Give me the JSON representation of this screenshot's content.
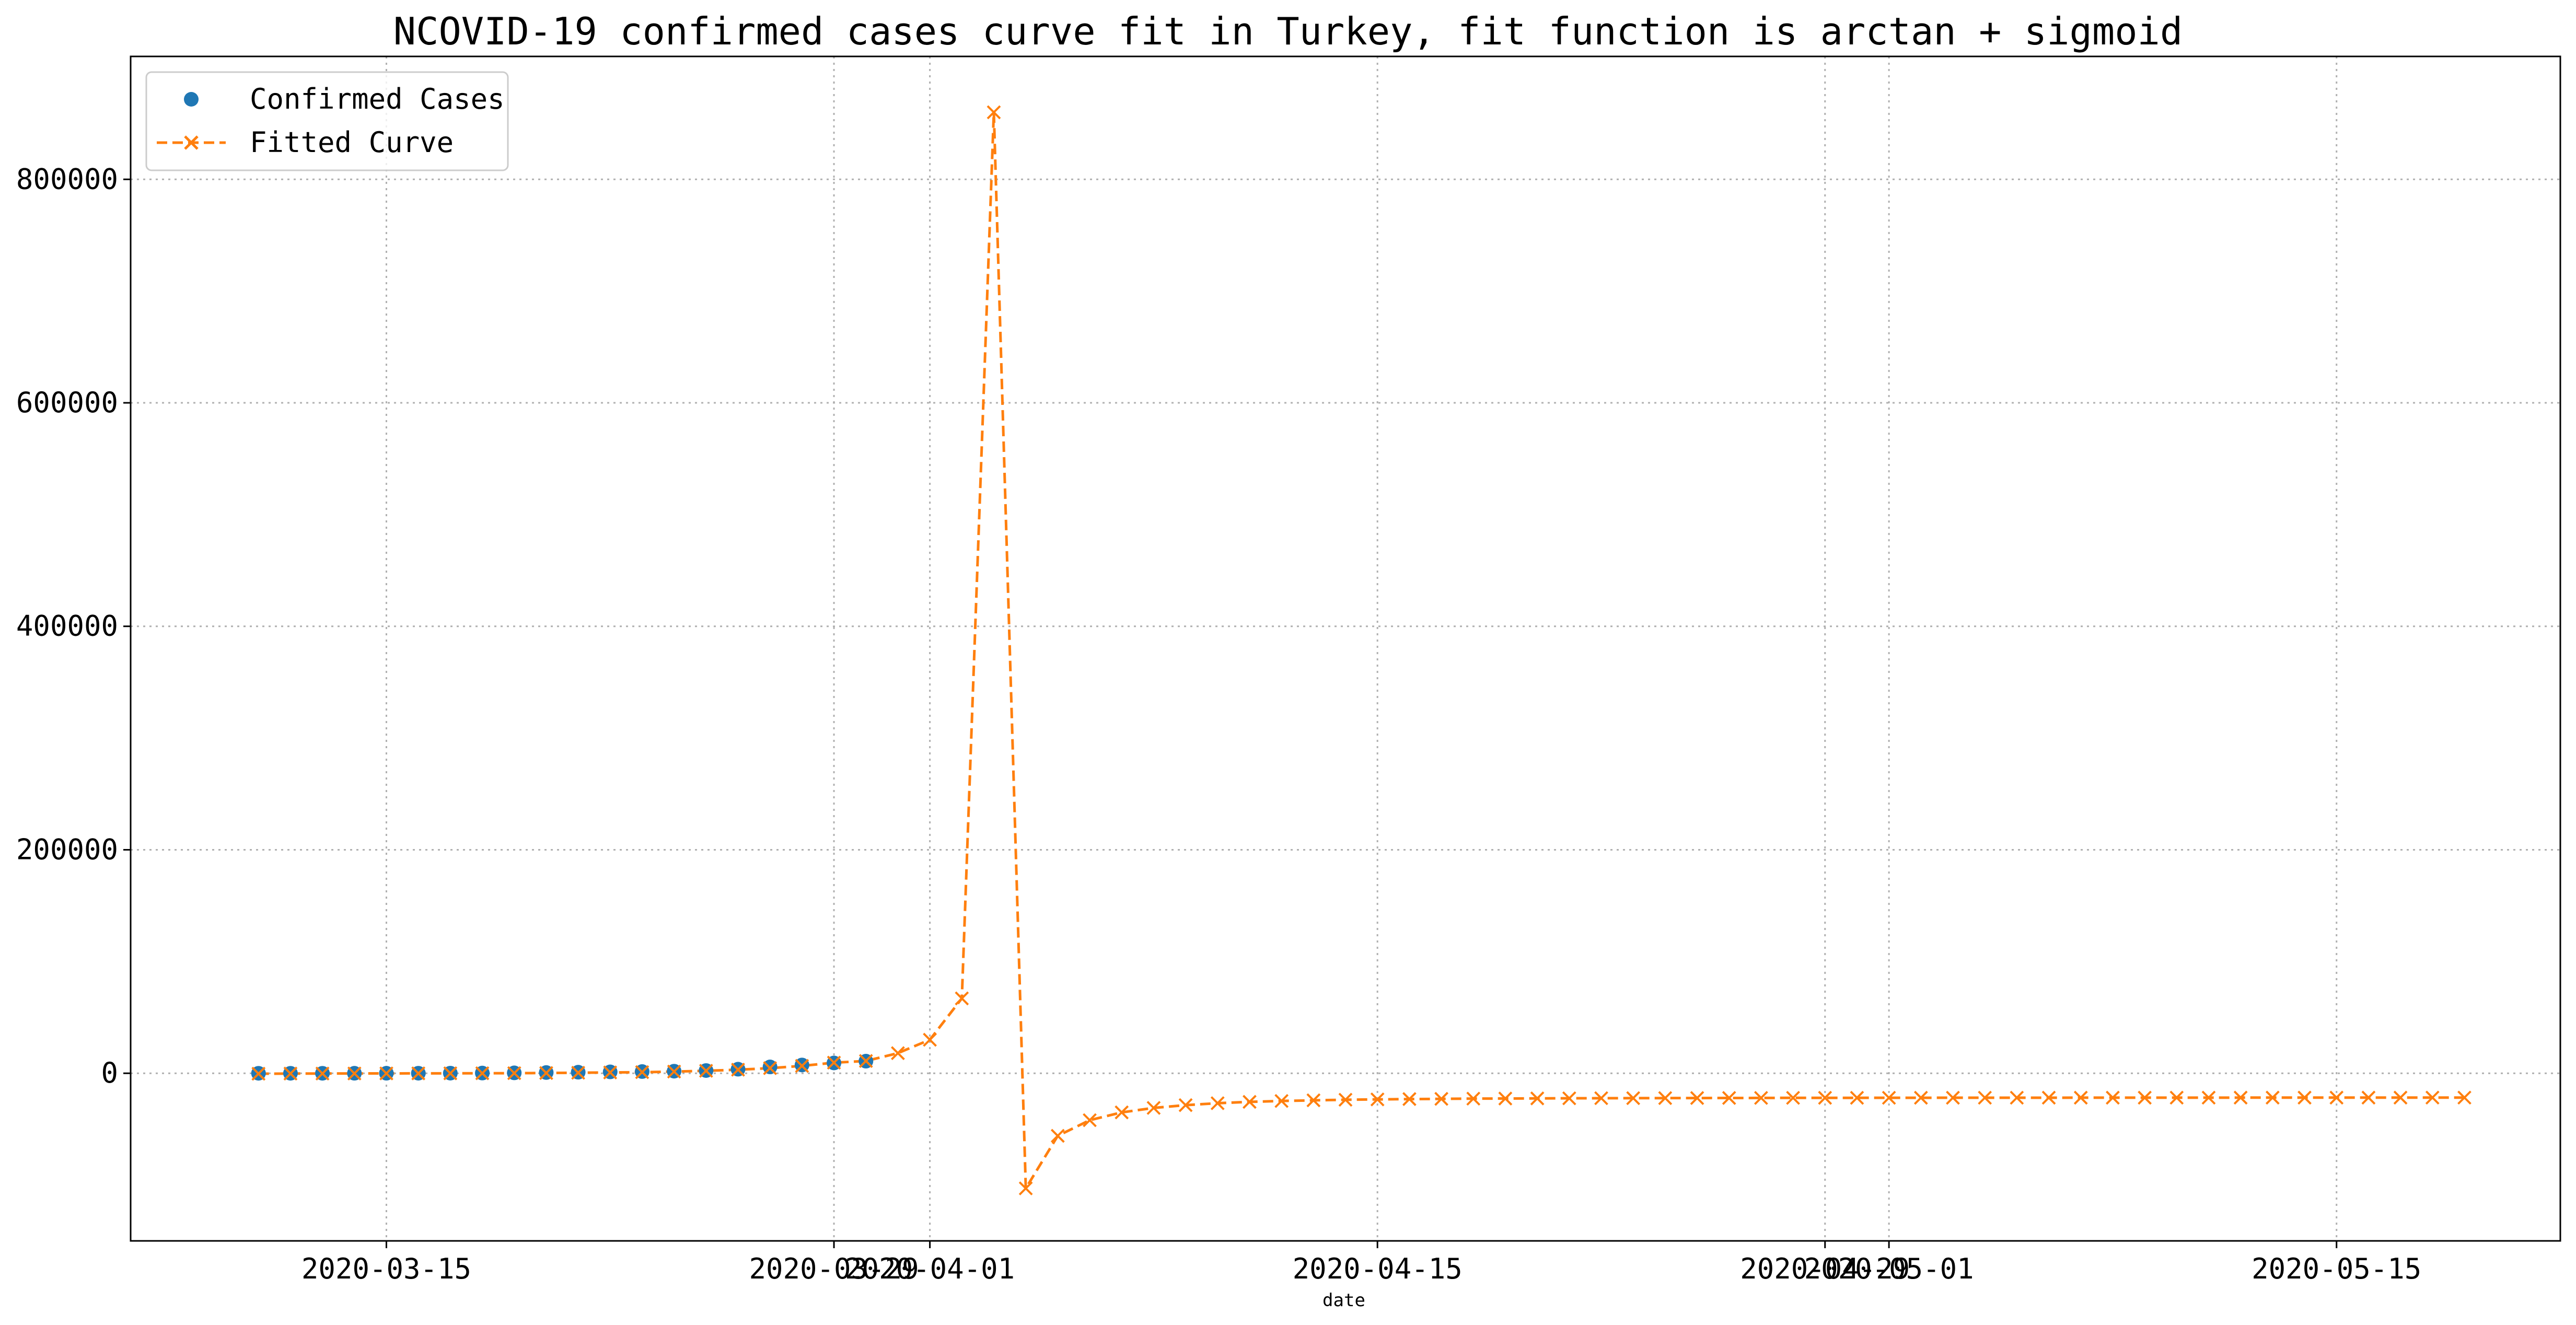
{
  "chart_data": {
    "type": "line",
    "title": "NCOVID-19 confirmed cases curve fit in Turkey, fit function is arctan + sigmoid",
    "xlabel": "date",
    "ylabel": "",
    "x_start": "2020-03-11",
    "xlim": [
      "2020-03-07",
      "2020-05-22"
    ],
    "ylim": [
      -150000,
      910000
    ],
    "grid": true,
    "legend_position": "top-left",
    "x_ticks": [
      {
        "label": "2020-03-15",
        "date": "2020-03-15"
      },
      {
        "label": "2020-03-29",
        "date": "2020-03-29"
      },
      {
        "label": "2020-04-01",
        "date": "2020-04-01"
      },
      {
        "label": "2020-04-15",
        "date": "2020-04-15"
      },
      {
        "label": "2020-04-29",
        "date": "2020-04-29"
      },
      {
        "label": "2020-05-01",
        "date": "2020-05-01"
      },
      {
        "label": "2020-05-15",
        "date": "2020-05-15"
      }
    ],
    "y_ticks": [
      {
        "label": "0",
        "value": 0
      },
      {
        "label": "200000",
        "value": 200000
      },
      {
        "label": "400000",
        "value": 400000
      },
      {
        "label": "600000",
        "value": 600000
      },
      {
        "label": "800000",
        "value": 800000
      }
    ],
    "series": [
      {
        "name": "Confirmed Cases",
        "marker": "circle",
        "line": "none",
        "color": "#1f77b4",
        "values": [
          1,
          1,
          5,
          6,
          18,
          47,
          98,
          191,
          359,
          670,
          947,
          1236,
          1529,
          1872,
          2433,
          3629,
          5698,
          7402,
          9217,
          10827
        ]
      },
      {
        "name": "Fitted Curve",
        "marker": "x",
        "line": "dashed",
        "color": "#ff7f0e",
        "values": [
          -400,
          -300,
          -250,
          -200,
          -150,
          -100,
          -50,
          0,
          100,
          250,
          450,
          700,
          1000,
          1500,
          2200,
          3200,
          4600,
          6600,
          9500,
          11000,
          18000,
          30000,
          67000,
          860000,
          -103000,
          -56000,
          -42000,
          -35000,
          -31000,
          -28500,
          -26800,
          -25600,
          -24800,
          -24200,
          -23700,
          -23400,
          -23100,
          -22900,
          -22700,
          -22600,
          -22500,
          -22400,
          -22300,
          -22250,
          -22200,
          -22150,
          -22100,
          -22050,
          -22000,
          -21980,
          -21960,
          -21940,
          -21920,
          -21900,
          -21890,
          -21880,
          -21870,
          -21860,
          -21850,
          -21840,
          -21830,
          -21820,
          -21810,
          -21800,
          -21795,
          -21790,
          -21785,
          -21780,
          -21775,
          -21770
        ]
      }
    ]
  }
}
